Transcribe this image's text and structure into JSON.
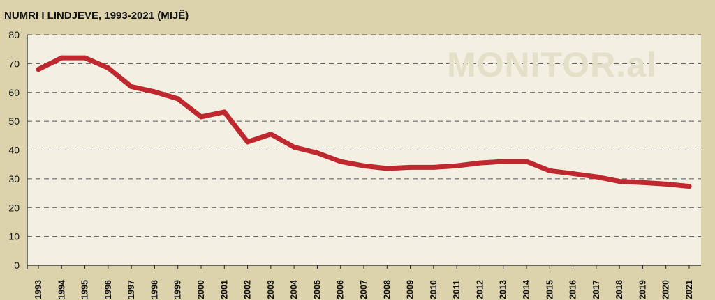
{
  "chart_data": {
    "type": "line",
    "title": "NUMRI I LINDJEVE, 1993-2021 (MIJË)",
    "watermark": "MONITOR.al",
    "xlabel": "",
    "ylabel": "",
    "ylim": [
      0,
      80
    ],
    "yticks": [
      0,
      10,
      20,
      30,
      40,
      50,
      60,
      70,
      80
    ],
    "grid": true,
    "legend": "none",
    "categories": [
      "1993",
      "1994",
      "1995",
      "1996",
      "1997",
      "1998",
      "1999",
      "2000",
      "2001",
      "2002",
      "2003",
      "2004",
      "2005",
      "2006",
      "2007",
      "2008",
      "2009",
      "2010",
      "2011",
      "2012",
      "2013",
      "2014",
      "2015",
      "2016",
      "2017",
      "2018",
      "2019",
      "2020",
      "2021"
    ],
    "series": [
      {
        "values": [
          68,
          72,
          72,
          68.5,
          62,
          60.2,
          57.8,
          51.5,
          53.2,
          42.8,
          45.5,
          41,
          39,
          36,
          34.5,
          33.6,
          34,
          34,
          34.5,
          35.5,
          36,
          36,
          32.8,
          31.8,
          30.7,
          29.1,
          28.7,
          28.2,
          27.4
        ]
      }
    ],
    "colors": {
      "line": "#c0282f",
      "plot_background": "#f3efe3",
      "page_background": "#dcd3ad",
      "gridline": "#555555",
      "watermark": "#e4dfc8"
    }
  }
}
